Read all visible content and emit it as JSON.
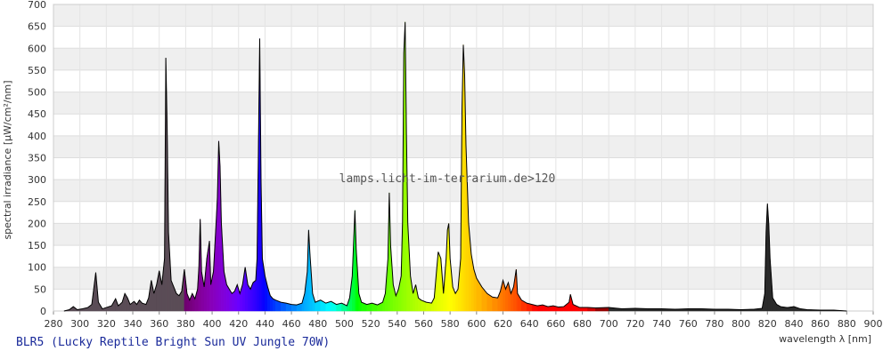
{
  "chart_data": {
    "type": "area",
    "title": "BLR5 (Lucky Reptile Bright Sun UV Jungle 70W)",
    "watermark": "lamps.licht-im-terrarium.de>120",
    "x_label": "wavelength λ [nm]",
    "y_label": "spectral irradiance [µW/cm²/nm]",
    "xlim": [
      280,
      900
    ],
    "ylim": [
      0,
      700
    ],
    "xticks": [
      280,
      300,
      320,
      340,
      360,
      380,
      400,
      420,
      440,
      460,
      480,
      500,
      520,
      540,
      560,
      580,
      600,
      620,
      640,
      660,
      680,
      700,
      720,
      740,
      760,
      780,
      800,
      820,
      840,
      860,
      880,
      900
    ],
    "yticks": [
      0,
      50,
      100,
      150,
      200,
      250,
      300,
      350,
      400,
      450,
      500,
      550,
      600,
      650,
      700
    ],
    "grid": true,
    "line_color": "#000000",
    "x": [
      288,
      292,
      295,
      298,
      302,
      306,
      309,
      312,
      314,
      317,
      320,
      324,
      327,
      329,
      332,
      334,
      336,
      338,
      341,
      343,
      345,
      347,
      350,
      352,
      354,
      356,
      358,
      360,
      362,
      364,
      365,
      366,
      367,
      369,
      371,
      373,
      375,
      377,
      379,
      381,
      383,
      385,
      387,
      389,
      390,
      391,
      392,
      394,
      396,
      398,
      399,
      401,
      403,
      404,
      405,
      406,
      407,
      409,
      411,
      413,
      415,
      417,
      419,
      421,
      423,
      425,
      427,
      429,
      431,
      433,
      434,
      435,
      436,
      437,
      438,
      440,
      442,
      444,
      446,
      448,
      452,
      456,
      460,
      464,
      468,
      470,
      472,
      473,
      474,
      476,
      478,
      482,
      486,
      490,
      494,
      498,
      502,
      504,
      506,
      508,
      509,
      511,
      513,
      517,
      521,
      525,
      529,
      531,
      533,
      534,
      535,
      537,
      539,
      541,
      543,
      544,
      545,
      546,
      547,
      548,
      550,
      552,
      554,
      556,
      558,
      562,
      566,
      568,
      570,
      571,
      573,
      575,
      577,
      578,
      579,
      580,
      582,
      584,
      586,
      588,
      589,
      590,
      591,
      592,
      594,
      596,
      598,
      600,
      604,
      608,
      612,
      616,
      618,
      620,
      622,
      624,
      626,
      628,
      630,
      631,
      634,
      638,
      642,
      646,
      650,
      654,
      658,
      662,
      666,
      670,
      671,
      673,
      678,
      684,
      690,
      700,
      710,
      720,
      730,
      740,
      750,
      760,
      770,
      780,
      790,
      800,
      810,
      816,
      818,
      819,
      820,
      821,
      822,
      824,
      827,
      830,
      835,
      840,
      845,
      850,
      860,
      870,
      880
    ],
    "values": [
      0,
      3,
      10,
      3,
      5,
      8,
      15,
      88,
      20,
      5,
      8,
      12,
      28,
      12,
      20,
      40,
      30,
      15,
      22,
      15,
      25,
      18,
      15,
      30,
      70,
      40,
      60,
      92,
      60,
      120,
      578,
      420,
      180,
      70,
      55,
      40,
      35,
      45,
      95,
      40,
      25,
      40,
      28,
      50,
      100,
      210,
      90,
      55,
      120,
      160,
      60,
      90,
      200,
      260,
      388,
      330,
      200,
      90,
      60,
      50,
      40,
      45,
      60,
      40,
      60,
      100,
      60,
      50,
      65,
      70,
      120,
      365,
      622,
      300,
      120,
      80,
      55,
      35,
      28,
      25,
      20,
      18,
      15,
      14,
      18,
      40,
      90,
      185,
      130,
      40,
      20,
      25,
      18,
      22,
      15,
      18,
      12,
      30,
      80,
      230,
      140,
      40,
      20,
      15,
      18,
      14,
      20,
      40,
      120,
      270,
      150,
      60,
      35,
      50,
      80,
      200,
      590,
      660,
      400,
      200,
      80,
      40,
      60,
      30,
      25,
      20,
      18,
      30,
      100,
      135,
      120,
      40,
      120,
      185,
      200,
      120,
      55,
      40,
      50,
      120,
      460,
      608,
      540,
      380,
      200,
      130,
      95,
      75,
      55,
      40,
      32,
      30,
      45,
      70,
      50,
      65,
      40,
      55,
      95,
      40,
      25,
      18,
      15,
      12,
      14,
      10,
      12,
      9,
      10,
      20,
      38,
      15,
      8,
      8,
      7,
      8,
      5,
      6,
      5,
      5,
      4,
      5,
      5,
      4,
      4,
      3,
      4,
      6,
      40,
      180,
      245,
      200,
      120,
      30,
      15,
      10,
      8,
      10,
      5,
      3,
      2,
      2,
      0
    ]
  }
}
